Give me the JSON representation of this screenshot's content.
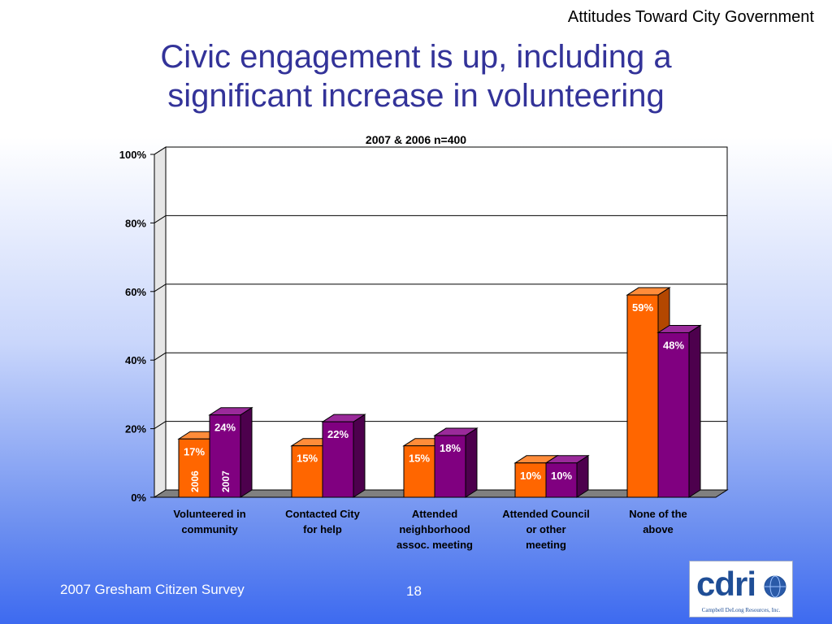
{
  "header": {
    "section_label": "Attitudes Toward City Government",
    "title_line1": "Civic engagement is up, including a",
    "title_line2": "significant increase in volunteering"
  },
  "footer": {
    "survey_name": "2007 Gresham Citizen Survey",
    "page_number": "18"
  },
  "logo": {
    "text": "cdri",
    "subtitle": "Campbell DeLong Resources, Inc."
  },
  "chart_data": {
    "type": "bar",
    "title": "2007 & 2006 n=400",
    "categories": [
      [
        "Volunteered in",
        "community"
      ],
      [
        "Contacted City",
        "for help"
      ],
      [
        "Attended",
        "neighborhood",
        "assoc. meeting"
      ],
      [
        "Attended Council",
        "or other",
        "meeting"
      ],
      [
        "None of the",
        "above"
      ]
    ],
    "series": [
      {
        "name": "2006",
        "values": [
          17,
          15,
          15,
          10,
          59
        ],
        "color": "#ff6600"
      },
      {
        "name": "2007",
        "values": [
          24,
          22,
          18,
          10,
          48
        ],
        "color": "#800080"
      }
    ],
    "value_labels": [
      [
        "17%",
        "15%",
        "15%",
        "10%",
        "59%"
      ],
      [
        "24%",
        "22%",
        "18%",
        "10%",
        "48%"
      ]
    ],
    "ylim": [
      0,
      100
    ],
    "yticks": [
      "0%",
      "20%",
      "40%",
      "60%",
      "80%",
      "100%"
    ],
    "ytick_values": [
      0,
      20,
      40,
      60,
      80,
      100
    ],
    "grid": true,
    "legend": "inline series labels inside first bars"
  }
}
